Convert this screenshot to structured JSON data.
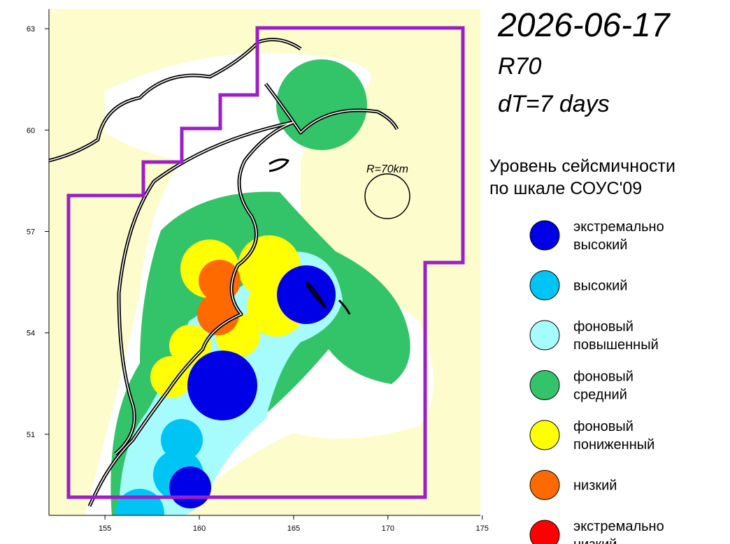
{
  "header": {
    "date": "2026-06-17",
    "radius_code": "R70",
    "window": "dT=7 days"
  },
  "map": {
    "xlim": [
      152.03,
      174.9
    ],
    "ylim": [
      48.6,
      63.58
    ],
    "xticks": [
      155,
      160,
      165,
      170,
      175
    ],
    "yticks": [
      63,
      60,
      57,
      54,
      51
    ],
    "circle_label": "R=70km"
  },
  "legend": {
    "title_lines": [
      "Уровень сейсмичности",
      "по шкале СОУС'09"
    ],
    "items": [
      {
        "label_lines": [
          "экстремально",
          "высокий"
        ],
        "color": "#0000e6"
      },
      {
        "label_lines": [
          "высокий"
        ],
        "color": "#00c4f4"
      },
      {
        "label_lines": [
          "фоновый",
          "повышенный"
        ],
        "color": "#a6fcfc"
      },
      {
        "label_lines": [
          "фоновый",
          "средний"
        ],
        "color": "#33c46a"
      },
      {
        "label_lines": [
          "фоновый",
          "пониженный"
        ],
        "color": "#ffff00"
      },
      {
        "label_lines": [
          "низкий"
        ],
        "color": "#ff6a00"
      },
      {
        "label_lines": [
          "экстремально",
          "низкий"
        ],
        "color": "#ff0000"
      }
    ]
  }
}
